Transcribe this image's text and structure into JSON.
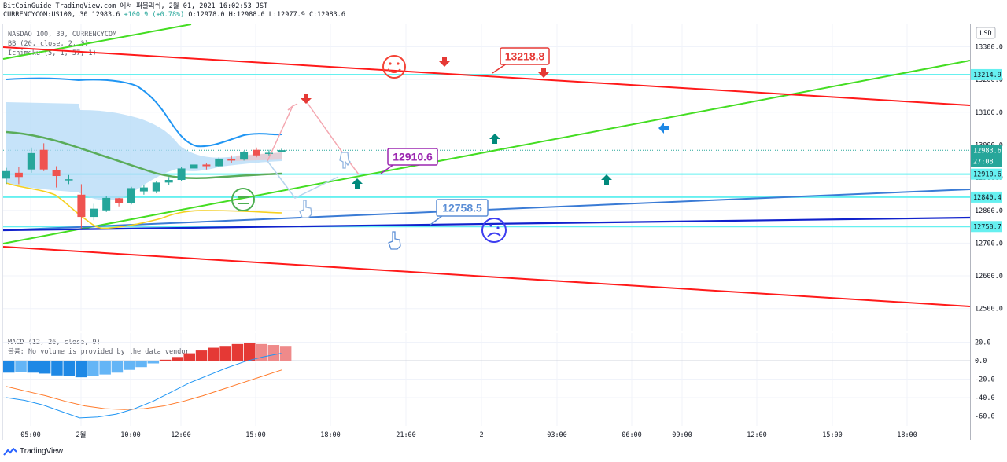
{
  "header": {
    "line1": "BitCoinGuide TradingView.com 에서 퍼블리쉬, 2월 01, 2021 16:02:53 JST",
    "symbol": "CURRENCYCOM:US100, 30 12983.6",
    "change": "+100.9 (+0.78%)",
    "ohlc": "O:12978.0 H:12988.0 L:12977.9 C:12983.6"
  },
  "indicators": {
    "main": "NASDAQ 100, 30, CURRENCYCOM",
    "bb": "BB (20, close, 2, 0)",
    "ichimoku": "Ichimoku (5, 1, 57, 1)",
    "macd": "MACD (12, 26, close, 9)",
    "volume_note": "볼륨: No volume is provided by the data vendor"
  },
  "currency_button": "USD",
  "brand": "TradingView",
  "colors": {
    "up": "#26a69a",
    "down": "#ef5350",
    "red_line": "#ff1a1a",
    "green_line": "#44dd22",
    "cyan_line": "#66f0f0",
    "blue_line": "#3a7bd5",
    "navy_line": "#1122cc",
    "bb": "#2196f3",
    "cloud": "#b3d9f7",
    "baseline": "#4caf50",
    "leading": "#f5d020",
    "macd_line": "#2196f3",
    "signal_line": "#ff7a2a",
    "purple": "#9c27b0"
  },
  "chart_data": {
    "type": "candlestick",
    "symbol": "CURRENCYCOM:US100",
    "interval": "30",
    "ylim": [
      12475,
      13345
    ],
    "y_ticks": [
      13300,
      13200,
      13100,
      13000,
      12900,
      12800,
      12700,
      12600,
      12500
    ],
    "x_ticks": [
      "05:00",
      "2월",
      "10:00",
      "12:00",
      "15:00",
      "18:00",
      "21:00",
      "2",
      "03:00",
      "06:00",
      "09:00",
      "12:00",
      "15:00",
      "18:00"
    ],
    "candles": [
      {
        "o": 12897,
        "h": 12930,
        "l": 12880,
        "c": 12920
      },
      {
        "o": 12915,
        "h": 12933,
        "l": 12880,
        "c": 12902
      },
      {
        "o": 12925,
        "h": 12992,
        "l": 12915,
        "c": 12975
      },
      {
        "o": 12985,
        "h": 13005,
        "l": 12920,
        "c": 12925
      },
      {
        "o": 12922,
        "h": 12935,
        "l": 12870,
        "c": 12905
      },
      {
        "o": 12895,
        "h": 12908,
        "l": 12880,
        "c": 12895
      },
      {
        "o": 12848,
        "h": 12880,
        "l": 12745,
        "c": 12780
      },
      {
        "o": 12780,
        "h": 12820,
        "l": 12770,
        "c": 12805
      },
      {
        "o": 12800,
        "h": 12845,
        "l": 12795,
        "c": 12838
      },
      {
        "o": 12837,
        "h": 12838,
        "l": 12812,
        "c": 12822
      },
      {
        "o": 12822,
        "h": 12872,
        "l": 12818,
        "c": 12868
      },
      {
        "o": 12858,
        "h": 12878,
        "l": 12848,
        "c": 12870
      },
      {
        "o": 12858,
        "h": 12890,
        "l": 12852,
        "c": 12885
      },
      {
        "o": 12885,
        "h": 12902,
        "l": 12878,
        "c": 12893
      },
      {
        "o": 12893,
        "h": 12933,
        "l": 12890,
        "c": 12928
      },
      {
        "o": 12928,
        "h": 12948,
        "l": 12920,
        "c": 12940
      },
      {
        "o": 12940,
        "h": 12945,
        "l": 12925,
        "c": 12935
      },
      {
        "o": 12935,
        "h": 12962,
        "l": 12932,
        "c": 12958
      },
      {
        "o": 12958,
        "h": 12968,
        "l": 12945,
        "c": 12952
      },
      {
        "o": 12955,
        "h": 12982,
        "l": 12952,
        "c": 12978
      },
      {
        "o": 12985,
        "h": 12992,
        "l": 12962,
        "c": 12968
      },
      {
        "o": 12975,
        "h": 12985,
        "l": 12968,
        "c": 12976
      },
      {
        "o": 12978,
        "h": 12988,
        "l": 12978,
        "c": 12984
      }
    ],
    "price_labels": [
      {
        "value": "13214.9",
        "kind": "cyan"
      },
      {
        "value": "12983.6",
        "kind": "current"
      },
      {
        "value": "27:08",
        "kind": "countdown"
      },
      {
        "value": "12910.6",
        "kind": "cyan"
      },
      {
        "value": "12840.4",
        "kind": "cyan"
      },
      {
        "value": "12750.7",
        "kind": "cyan"
      }
    ],
    "horizontal_levels": [
      13214.9,
      12910.6,
      12840.4,
      12750.7
    ],
    "annotations": [
      "13218.8",
      "12910.6",
      "12758.5"
    ],
    "macd": {
      "ylim": [
        -70,
        25
      ],
      "y_ticks": [
        20.0,
        0.0,
        -20.0,
        -40.0,
        -60.0
      ],
      "histogram": [
        -13,
        -12,
        -13,
        -14,
        -16,
        -17,
        -18,
        -17,
        -15,
        -13,
        -10,
        -7,
        -3,
        1,
        4,
        8,
        11,
        14,
        16,
        18,
        19,
        18,
        17,
        16
      ],
      "macd_line": [
        -40,
        -43,
        -48,
        -55,
        -62,
        -61,
        -58,
        -52,
        -44,
        -34,
        -24,
        -16,
        -8,
        -1,
        4,
        8
      ],
      "signal_line": [
        -28,
        -33,
        -38,
        -44,
        -49,
        -52,
        -53,
        -52,
        -49,
        -44,
        -38,
        -31,
        -24,
        -17,
        -10
      ]
    }
  }
}
